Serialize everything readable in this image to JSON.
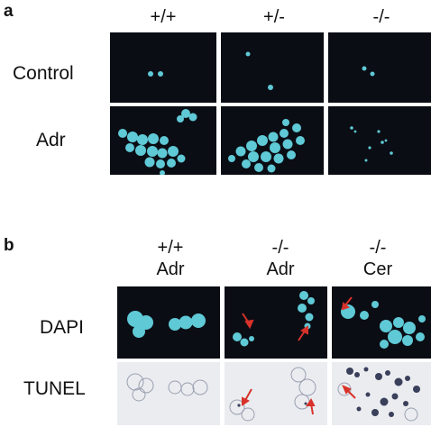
{
  "panel_a": {
    "letter": "a",
    "columns": [
      "+/+",
      "+/-",
      "-/-"
    ],
    "rows": [
      "Control",
      "Adr"
    ]
  },
  "panel_b": {
    "letter": "b",
    "columns": [
      {
        "genotype": "+/+",
        "treatment": "Adr"
      },
      {
        "genotype": "-/-",
        "treatment": "Adr"
      },
      {
        "genotype": "-/-",
        "treatment": "Cer"
      }
    ],
    "rows": [
      "DAPI",
      "TUNEL"
    ]
  },
  "colors": {
    "dapi_background": "#0b0d14",
    "dapi_nucleus": "#5fc9d6",
    "tunel_background": "#eaecf0",
    "tunel_stain": "#3a3f5a",
    "arrow": "#d8322a"
  }
}
